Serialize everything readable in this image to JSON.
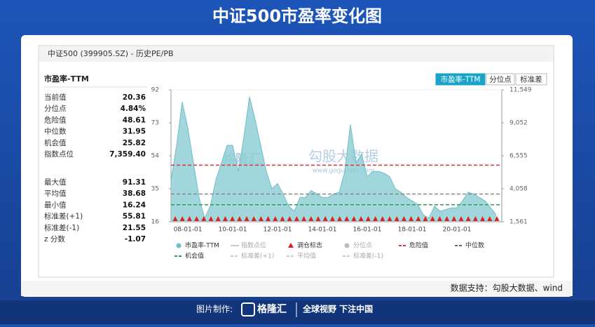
{
  "title": "中证500市盈率变化图",
  "panel_header": "中证500 (399905.SZ) - 历史PE/PB",
  "stats_title": "市盈率-TTM",
  "stats": [
    [
      [
        "当前值",
        "20.36"
      ],
      [
        "分位点",
        "4.84%"
      ],
      [
        "危险值",
        "48.61"
      ],
      [
        "中位数",
        "31.95"
      ],
      [
        "机会值",
        "25.82"
      ],
      [
        "指数点位",
        "7,359.40"
      ]
    ],
    [
      [
        "最大值",
        "91.31"
      ],
      [
        "平均值",
        "38.68"
      ],
      [
        "最小值",
        "16.24"
      ],
      [
        "标准差(+1)",
        "55.81"
      ],
      [
        "标准差(-1)",
        "21.55"
      ],
      [
        "z 分数",
        "-1.07"
      ]
    ]
  ],
  "tabs": [
    "市盈率-TTM",
    "分位点",
    "标准差"
  ],
  "watermark": [
    "格隆汇",
    "勾股大数据",
    "www.gogudata.com"
  ],
  "source": "数据支持：勾股大数据、wind",
  "footer": {
    "made_by": "图片制作:",
    "logo": "格隆汇",
    "slogan": "全球视野 下注中国"
  },
  "chart_data": {
    "type": "area",
    "categories": [
      null,
      null,
      null,
      "08-01-01",
      null,
      null,
      null,
      null,
      null,
      null,
      null,
      "10-01-01",
      null,
      null,
      null,
      null,
      null,
      null,
      null,
      "12-01-01",
      null,
      null,
      null,
      null,
      null,
      null,
      null,
      "14-01-01",
      null,
      null,
      null,
      null,
      null,
      null,
      null,
      "16-01-01",
      null,
      null,
      null,
      null,
      null,
      null,
      null,
      "18-01-01",
      null,
      null,
      null,
      null,
      null,
      null,
      null,
      "20-01-01",
      null,
      null,
      null,
      null,
      null,
      null,
      null
    ],
    "series": [
      {
        "name": "市盈率-TTM",
        "color": "#8fcfd6",
        "values": [
          40,
          60,
          85,
          70,
          50,
          30,
          18,
          25,
          40,
          50,
          60,
          60,
          45,
          65,
          88,
          75,
          60,
          45,
          35,
          38,
          32,
          25,
          22,
          30,
          30,
          34,
          32,
          30,
          30,
          32,
          33,
          45,
          72,
          50,
          55,
          42,
          45,
          45,
          44,
          42,
          35,
          33,
          30,
          28,
          26,
          20,
          18,
          25,
          22,
          23,
          24,
          24,
          28,
          33,
          32,
          30,
          28,
          24,
          20
        ]
      }
    ],
    "ylim": [
      16,
      92
    ],
    "yticks": [
      16,
      35,
      54,
      73,
      92
    ],
    "y2lim": [
      1561,
      11549
    ],
    "y2ticks": [
      {
        "value": 1561,
        "label": "1,561"
      },
      {
        "value": 4058,
        "label": "4,058"
      },
      {
        "value": 6555,
        "label": "6,555"
      },
      {
        "value": 9052,
        "label": "9,052"
      },
      {
        "value": 11549,
        "label": "11,549"
      }
    ],
    "reference_lines": [
      {
        "value": 48.61,
        "color": "#d9363e"
      },
      {
        "value": 31.95,
        "color": "#8a8a8a"
      },
      {
        "value": 25.82,
        "color": "#2e9e5b"
      }
    ],
    "legend": [
      {
        "name": "指数点位",
        "color": "#cccccc",
        "symbol": "line",
        "active": false
      },
      {
        "name": "调仓标志",
        "color": "#e0201c",
        "symbol": "triangle",
        "active": true
      },
      {
        "name": "分位点",
        "color": "#bbbbbb",
        "symbol": "circle",
        "active": false
      },
      {
        "name": "危险值",
        "color": "#d9363e",
        "symbol": "dash",
        "active": true
      },
      {
        "name": "中位数",
        "color": "#666666",
        "symbol": "dash",
        "active": true
      },
      {
        "name": "机会值",
        "color": "#2e9e5b",
        "symbol": "dash",
        "active": true
      },
      {
        "name": "标准差(+1)",
        "color": "#cccccc",
        "symbol": "dash",
        "active": false
      },
      {
        "name": "平均值",
        "color": "#cccccc",
        "symbol": "dash",
        "active": false
      },
      {
        "name": "标准差(-1)",
        "color": "#cccccc",
        "symbol": "dash",
        "active": false
      }
    ]
  }
}
